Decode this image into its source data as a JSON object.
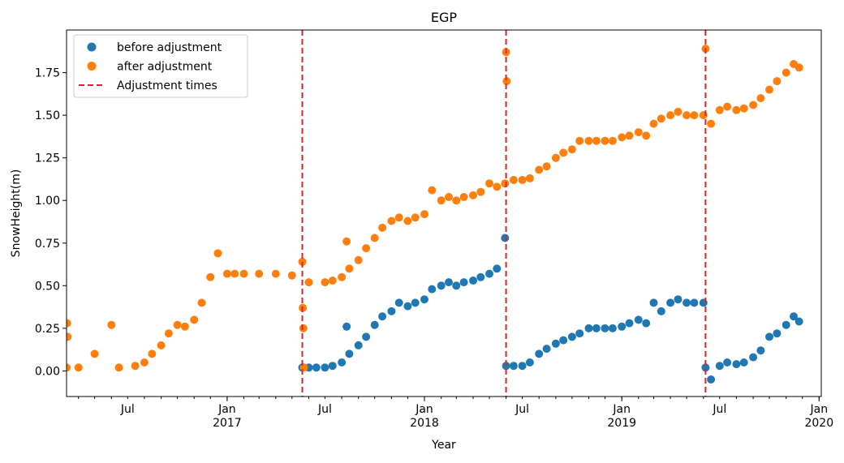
{
  "chart_data": {
    "type": "scatter",
    "title": "EGP",
    "xlabel": "Year",
    "ylabel": "SnowHeight(m)",
    "xlim": [
      "2016-03-10",
      "2020-01-05"
    ],
    "ylim": [
      -0.15,
      2.0
    ],
    "y_ticks": [
      0.0,
      0.25,
      0.5,
      0.75,
      1.0,
      1.25,
      1.5,
      1.75
    ],
    "y_tick_labels": [
      "0.00",
      "0.25",
      "0.50",
      "0.75",
      "1.00",
      "1.25",
      "1.50",
      "1.75"
    ],
    "x_major_ticks": [
      {
        "date": "2017-01-01",
        "label": "Jan",
        "year": "2017"
      },
      {
        "date": "2018-01-01",
        "label": "Jan",
        "year": "2018"
      },
      {
        "date": "2019-01-01",
        "label": "Jan",
        "year": "2019"
      },
      {
        "date": "2020-01-01",
        "label": "Jan",
        "year": "2020"
      }
    ],
    "x_mid_ticks": [
      {
        "date": "2016-07-01",
        "label": "Jul"
      },
      {
        "date": "2017-07-01",
        "label": "Jul"
      },
      {
        "date": "2018-07-01",
        "label": "Jul"
      },
      {
        "date": "2019-07-01",
        "label": "Jul"
      }
    ],
    "legend_position": "upper-left",
    "legend": [
      {
        "label": "before adjustment",
        "kind": "marker",
        "color": "#1f77b4"
      },
      {
        "label": "after adjustment",
        "kind": "marker",
        "color": "#ff7f0e"
      },
      {
        "label": "Adjustment times",
        "kind": "dashed-line",
        "color": "#d62728"
      }
    ],
    "adjustment_times": [
      "2017-05-20",
      "2018-06-01",
      "2019-06-05"
    ],
    "series": [
      {
        "name": "before adjustment",
        "color": "#1f77b4",
        "points": [
          [
            "2017-05-20",
            0.02
          ],
          [
            "2017-06-01",
            0.02
          ],
          [
            "2017-06-15",
            0.02
          ],
          [
            "2017-07-01",
            0.02
          ],
          [
            "2017-07-15",
            0.03
          ],
          [
            "2017-08-01",
            0.05
          ],
          [
            "2017-08-10",
            0.26
          ],
          [
            "2017-08-15",
            0.1
          ],
          [
            "2017-09-01",
            0.15
          ],
          [
            "2017-09-15",
            0.2
          ],
          [
            "2017-10-01",
            0.27
          ],
          [
            "2017-10-15",
            0.32
          ],
          [
            "2017-11-01",
            0.35
          ],
          [
            "2017-11-15",
            0.4
          ],
          [
            "2017-12-01",
            0.38
          ],
          [
            "2017-12-15",
            0.4
          ],
          [
            "2018-01-01",
            0.42
          ],
          [
            "2018-01-15",
            0.48
          ],
          [
            "2018-02-01",
            0.5
          ],
          [
            "2018-02-15",
            0.52
          ],
          [
            "2018-03-01",
            0.5
          ],
          [
            "2018-03-15",
            0.52
          ],
          [
            "2018-04-01",
            0.53
          ],
          [
            "2018-04-15",
            0.55
          ],
          [
            "2018-05-01",
            0.57
          ],
          [
            "2018-05-15",
            0.6
          ],
          [
            "2018-05-30",
            0.78
          ],
          [
            "2018-06-01",
            0.03
          ],
          [
            "2018-06-15",
            0.03
          ],
          [
            "2018-07-01",
            0.03
          ],
          [
            "2018-07-15",
            0.05
          ],
          [
            "2018-08-01",
            0.1
          ],
          [
            "2018-08-15",
            0.13
          ],
          [
            "2018-09-01",
            0.16
          ],
          [
            "2018-09-15",
            0.18
          ],
          [
            "2018-10-01",
            0.2
          ],
          [
            "2018-10-15",
            0.22
          ],
          [
            "2018-11-01",
            0.25
          ],
          [
            "2018-11-15",
            0.25
          ],
          [
            "2018-12-01",
            0.25
          ],
          [
            "2018-12-15",
            0.25
          ],
          [
            "2019-01-01",
            0.26
          ],
          [
            "2019-01-15",
            0.28
          ],
          [
            "2019-02-01",
            0.3
          ],
          [
            "2019-02-15",
            0.28
          ],
          [
            "2019-03-01",
            0.4
          ],
          [
            "2019-03-15",
            0.35
          ],
          [
            "2019-04-01",
            0.4
          ],
          [
            "2019-04-15",
            0.42
          ],
          [
            "2019-05-01",
            0.4
          ],
          [
            "2019-05-15",
            0.4
          ],
          [
            "2019-06-01",
            0.4
          ],
          [
            "2019-06-05",
            0.02
          ],
          [
            "2019-06-15",
            -0.05
          ],
          [
            "2019-07-01",
            0.03
          ],
          [
            "2019-07-15",
            0.05
          ],
          [
            "2019-08-01",
            0.04
          ],
          [
            "2019-08-15",
            0.05
          ],
          [
            "2019-09-01",
            0.08
          ],
          [
            "2019-09-15",
            0.12
          ],
          [
            "2019-10-01",
            0.2
          ],
          [
            "2019-10-15",
            0.22
          ],
          [
            "2019-11-01",
            0.27
          ],
          [
            "2019-11-15",
            0.32
          ],
          [
            "2019-11-25",
            0.29
          ]
        ]
      },
      {
        "name": "after adjustment",
        "color": "#ff7f0e",
        "points": [
          [
            "2016-03-10",
            0.02
          ],
          [
            "2016-03-11",
            0.28
          ],
          [
            "2016-03-12",
            0.2
          ],
          [
            "2016-04-01",
            0.02
          ],
          [
            "2016-05-01",
            0.1
          ],
          [
            "2016-06-01",
            0.27
          ],
          [
            "2016-06-15",
            0.02
          ],
          [
            "2016-07-15",
            0.03
          ],
          [
            "2016-08-01",
            0.05
          ],
          [
            "2016-08-15",
            0.1
          ],
          [
            "2016-09-01",
            0.15
          ],
          [
            "2016-09-15",
            0.22
          ],
          [
            "2016-10-01",
            0.27
          ],
          [
            "2016-10-15",
            0.26
          ],
          [
            "2016-11-01",
            0.3
          ],
          [
            "2016-11-15",
            0.4
          ],
          [
            "2016-12-01",
            0.55
          ],
          [
            "2016-12-15",
            0.69
          ],
          [
            "2017-01-01",
            0.57
          ],
          [
            "2017-01-15",
            0.57
          ],
          [
            "2017-02-01",
            0.57
          ],
          [
            "2017-03-01",
            0.57
          ],
          [
            "2017-04-01",
            0.57
          ],
          [
            "2017-05-01",
            0.56
          ],
          [
            "2017-05-20",
            0.64
          ],
          [
            "2017-05-21",
            0.37
          ],
          [
            "2017-05-22",
            0.25
          ],
          [
            "2017-05-23",
            0.02
          ],
          [
            "2017-06-01",
            0.52
          ],
          [
            "2017-07-01",
            0.52
          ],
          [
            "2017-07-15",
            0.53
          ],
          [
            "2017-08-01",
            0.55
          ],
          [
            "2017-08-10",
            0.76
          ],
          [
            "2017-08-15",
            0.6
          ],
          [
            "2017-09-01",
            0.65
          ],
          [
            "2017-09-15",
            0.72
          ],
          [
            "2017-10-01",
            0.78
          ],
          [
            "2017-10-15",
            0.84
          ],
          [
            "2017-11-01",
            0.88
          ],
          [
            "2017-11-15",
            0.9
          ],
          [
            "2017-12-01",
            0.88
          ],
          [
            "2017-12-15",
            0.9
          ],
          [
            "2018-01-01",
            0.92
          ],
          [
            "2018-01-15",
            1.06
          ],
          [
            "2018-02-01",
            1.0
          ],
          [
            "2018-02-15",
            1.02
          ],
          [
            "2018-03-01",
            1.0
          ],
          [
            "2018-03-15",
            1.02
          ],
          [
            "2018-04-01",
            1.03
          ],
          [
            "2018-04-15",
            1.05
          ],
          [
            "2018-05-01",
            1.1
          ],
          [
            "2018-05-15",
            1.08
          ],
          [
            "2018-05-30",
            1.1
          ],
          [
            "2018-06-01",
            1.87
          ],
          [
            "2018-06-02",
            1.7
          ],
          [
            "2018-06-15",
            1.12
          ],
          [
            "2018-07-01",
            1.12
          ],
          [
            "2018-07-15",
            1.13
          ],
          [
            "2018-08-01",
            1.18
          ],
          [
            "2018-08-15",
            1.2
          ],
          [
            "2018-09-01",
            1.25
          ],
          [
            "2018-09-15",
            1.28
          ],
          [
            "2018-10-01",
            1.3
          ],
          [
            "2018-10-15",
            1.35
          ],
          [
            "2018-11-01",
            1.35
          ],
          [
            "2018-11-15",
            1.35
          ],
          [
            "2018-12-01",
            1.35
          ],
          [
            "2018-12-15",
            1.35
          ],
          [
            "2019-01-01",
            1.37
          ],
          [
            "2019-01-15",
            1.38
          ],
          [
            "2019-02-01",
            1.4
          ],
          [
            "2019-02-15",
            1.38
          ],
          [
            "2019-03-01",
            1.45
          ],
          [
            "2019-03-15",
            1.48
          ],
          [
            "2019-04-01",
            1.5
          ],
          [
            "2019-04-15",
            1.52
          ],
          [
            "2019-05-01",
            1.5
          ],
          [
            "2019-05-15",
            1.5
          ],
          [
            "2019-06-01",
            1.5
          ],
          [
            "2019-06-05",
            1.89
          ],
          [
            "2019-06-15",
            1.45
          ],
          [
            "2019-07-01",
            1.53
          ],
          [
            "2019-07-15",
            1.55
          ],
          [
            "2019-08-01",
            1.53
          ],
          [
            "2019-08-15",
            1.54
          ],
          [
            "2019-09-01",
            1.56
          ],
          [
            "2019-09-15",
            1.6
          ],
          [
            "2019-10-01",
            1.65
          ],
          [
            "2019-10-15",
            1.7
          ],
          [
            "2019-11-01",
            1.75
          ],
          [
            "2019-11-15",
            1.8
          ],
          [
            "2019-11-25",
            1.78
          ]
        ]
      }
    ]
  }
}
